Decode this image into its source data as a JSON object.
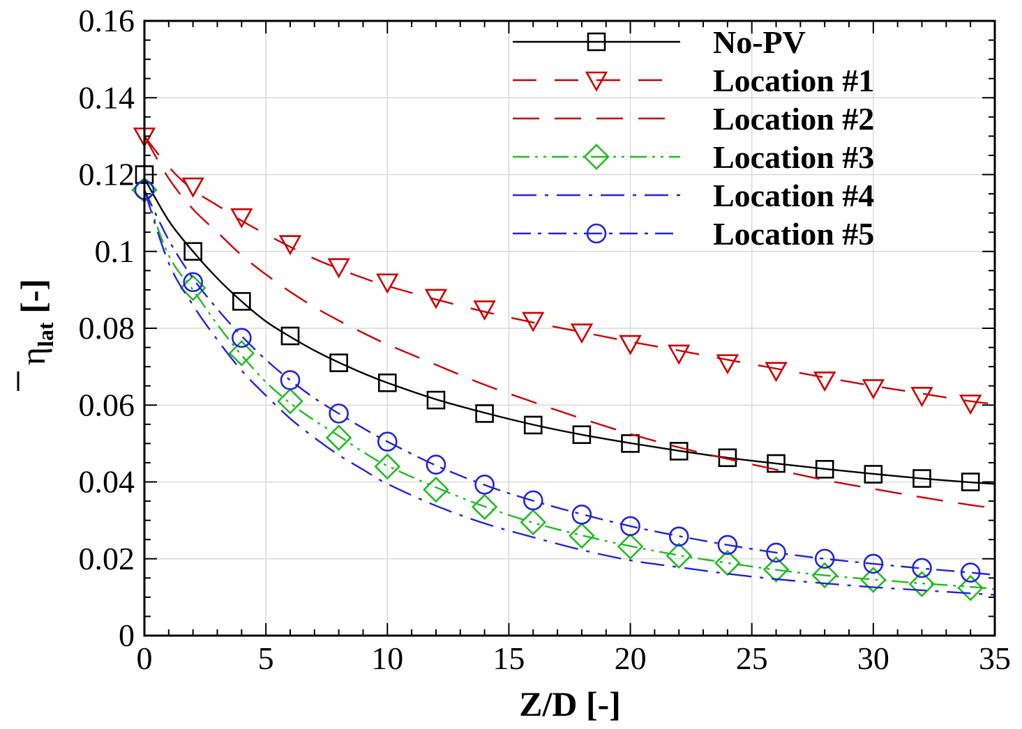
{
  "chart_data": {
    "type": "line",
    "title": "",
    "xlabel": "Z/D [-]",
    "ylabel": {
      "symbol": "η",
      "subscript": "lat",
      "unit": " [-]"
    },
    "xlim": [
      0,
      35
    ],
    "ylim": [
      0,
      0.16
    ],
    "xticks": [
      0,
      5,
      10,
      15,
      20,
      25,
      30,
      35
    ],
    "xtick_labels": [
      "0",
      "5",
      "10",
      "15",
      "20",
      "25",
      "30",
      "35"
    ],
    "yticks": [
      0,
      0.02,
      0.04,
      0.06,
      0.08,
      0.1,
      0.12,
      0.14,
      0.16
    ],
    "ytick_labels": [
      "0",
      "0.02",
      "0.04",
      "0.06",
      "0.08",
      "0.1",
      "0.12",
      "0.14",
      "0.16"
    ],
    "grid": true,
    "legend_position": "top-right",
    "marker_x": [
      0,
      2,
      4,
      6,
      8,
      10,
      12,
      14,
      16,
      18,
      20,
      22,
      24,
      26,
      28,
      30,
      32,
      34
    ],
    "series": [
      {
        "name": "No-PV",
        "color": "#000000",
        "dash": "solid",
        "marker": "square",
        "x": [
          0,
          1,
          2,
          3,
          4,
          5,
          6,
          7,
          8,
          9,
          10,
          12,
          14,
          16,
          18,
          20,
          22,
          24,
          26,
          28,
          30,
          32,
          34,
          35
        ],
        "values": [
          0.119,
          0.108,
          0.1,
          0.093,
          0.087,
          0.0818,
          0.0778,
          0.0742,
          0.0711,
          0.0683,
          0.0658,
          0.0615,
          0.058,
          0.0549,
          0.0523,
          0.0501,
          0.0481,
          0.0463,
          0.0448,
          0.0434,
          0.0421,
          0.0409,
          0.0399,
          0.0395
        ],
        "marker_values": [
          0.12,
          0.1,
          0.087,
          0.078,
          0.071,
          0.0658,
          0.0613,
          0.0578,
          0.0548,
          0.0523,
          0.05,
          0.048,
          0.0463,
          0.0448,
          0.0433,
          0.042,
          0.0409,
          0.04
        ]
      },
      {
        "name": "Location #1",
        "color": "#cc0000",
        "dash": "long-dash",
        "marker": "triangle-down",
        "x": [
          0,
          1,
          2,
          3,
          4,
          5,
          6,
          7,
          8,
          9,
          10,
          12,
          14,
          16,
          18,
          20,
          22,
          24,
          26,
          28,
          30,
          32,
          34,
          35
        ],
        "values": [
          0.13,
          0.122,
          0.116,
          0.112,
          0.108,
          0.1045,
          0.1012,
          0.0981,
          0.0955,
          0.0931,
          0.091,
          0.0875,
          0.0843,
          0.0815,
          0.079,
          0.0765,
          0.0742,
          0.0718,
          0.0695,
          0.0672,
          0.065,
          0.063,
          0.061,
          0.0603
        ],
        "marker_values": [
          0.13,
          0.117,
          0.109,
          0.102,
          0.096,
          0.092,
          0.088,
          0.085,
          0.082,
          0.079,
          0.076,
          0.0735,
          0.071,
          0.069,
          0.0665,
          0.0645,
          0.0625,
          0.0605
        ]
      },
      {
        "name": "Location #2",
        "color": "#cc0000",
        "dash": "dash",
        "marker": "none",
        "x": [
          0,
          1,
          2,
          3,
          4,
          5,
          6,
          7,
          8,
          9,
          10,
          12,
          14,
          16,
          18,
          20,
          22,
          24,
          26,
          28,
          30,
          32,
          34,
          35
        ],
        "values": [
          0.13,
          0.119,
          0.111,
          0.105,
          0.099,
          0.094,
          0.0895,
          0.0855,
          0.082,
          0.0788,
          0.0758,
          0.0705,
          0.0653,
          0.0608,
          0.0565,
          0.0525,
          0.049,
          0.046,
          0.0432,
          0.0405,
          0.0382,
          0.036,
          0.034,
          0.0332
        ],
        "marker_values": []
      },
      {
        "name": "Location #3",
        "color": "#22bb22",
        "dash": "dash-dot-dot",
        "marker": "diamond",
        "x": [
          0,
          1,
          2,
          3,
          4,
          5,
          6,
          7,
          8,
          9,
          10,
          12,
          14,
          16,
          18,
          20,
          22,
          24,
          26,
          28,
          30,
          32,
          34,
          35
        ],
        "values": [
          0.116,
          0.099,
          0.09,
          0.081,
          0.073,
          0.066,
          0.0605,
          0.056,
          0.052,
          0.0478,
          0.0442,
          0.0386,
          0.0336,
          0.0294,
          0.0261,
          0.0233,
          0.0209,
          0.0189,
          0.0171,
          0.0157,
          0.0146,
          0.0136,
          0.0127,
          0.0121
        ],
        "marker_values": [
          0.116,
          0.0905,
          0.0735,
          0.061,
          0.0515,
          0.044,
          0.038,
          0.0335,
          0.0295,
          0.026,
          0.0232,
          0.0208,
          0.0189,
          0.0172,
          0.0157,
          0.0145,
          0.0134,
          0.0124
        ]
      },
      {
        "name": "Location #4",
        "color": "#2222dd",
        "dash": "long-dash-dot",
        "marker": "none",
        "x": [
          0,
          1,
          2,
          3,
          4,
          5,
          6,
          7,
          8,
          9,
          10,
          12,
          14,
          16,
          18,
          20,
          22,
          24,
          26,
          28,
          30,
          32,
          34,
          35
        ],
        "values": [
          0.116,
          0.097,
          0.086,
          0.077,
          0.069,
          0.0625,
          0.0565,
          0.0515,
          0.047,
          0.0432,
          0.0395,
          0.0338,
          0.0292,
          0.0256,
          0.0223,
          0.0196,
          0.0178,
          0.0161,
          0.0147,
          0.0136,
          0.0126,
          0.0118,
          0.011,
          0.0106
        ],
        "marker_values": []
      },
      {
        "name": "Location #5",
        "color": "#2222dd",
        "dash": "dash-dot",
        "marker": "circle",
        "x": [
          0,
          1,
          2,
          3,
          4,
          5,
          6,
          7,
          8,
          9,
          10,
          12,
          14,
          16,
          18,
          20,
          22,
          24,
          26,
          28,
          30,
          32,
          34,
          35
        ],
        "values": [
          0.116,
          0.103,
          0.093,
          0.085,
          0.078,
          0.0718,
          0.0665,
          0.0618,
          0.0578,
          0.054,
          0.0505,
          0.0443,
          0.0392,
          0.0351,
          0.0316,
          0.0285,
          0.0259,
          0.0236,
          0.0216,
          0.02,
          0.0187,
          0.0175,
          0.0164,
          0.0158
        ],
        "marker_values": [
          0.116,
          0.092,
          0.0775,
          0.0665,
          0.0578,
          0.0505,
          0.0445,
          0.0393,
          0.0352,
          0.0315,
          0.0285,
          0.0258,
          0.0236,
          0.0216,
          0.02,
          0.0187,
          0.0176,
          0.0164
        ]
      }
    ]
  }
}
